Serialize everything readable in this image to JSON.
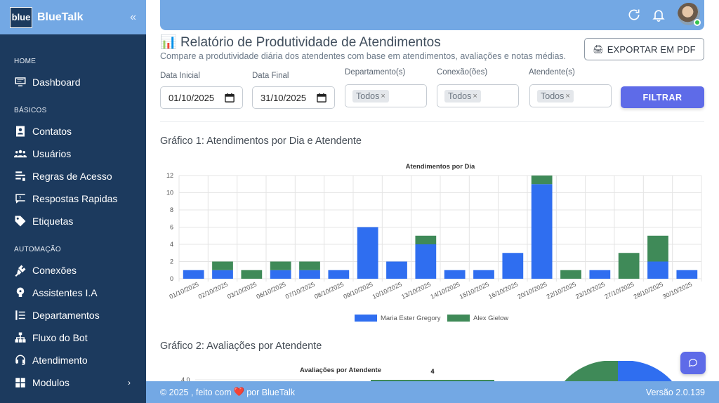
{
  "sidebar": {
    "logo_text": "blue",
    "brand": "BlueTalk",
    "collapse_icon": "double-chevron-left-icon",
    "sections": [
      {
        "label": "HOME",
        "items": [
          {
            "label": "Dashboard",
            "icon": "monitor-icon"
          }
        ]
      },
      {
        "label": "BÁSICOS",
        "items": [
          {
            "label": "Contatos",
            "icon": "contact-card-icon"
          },
          {
            "label": "Usuários",
            "icon": "users-icon"
          },
          {
            "label": "Regras de Acesso",
            "icon": "rules-icon"
          },
          {
            "label": "Respostas Rapidas",
            "icon": "question-icon"
          },
          {
            "label": "Etiquetas",
            "icon": "tag-icon"
          }
        ]
      },
      {
        "label": "AUTOMAÇÃO",
        "items": [
          {
            "label": "Conexões",
            "icon": "plug-icon"
          },
          {
            "label": "Assistentes I.A",
            "icon": "brain-icon"
          },
          {
            "label": "Departamentos",
            "icon": "list-icon"
          },
          {
            "label": "Fluxo do Bot",
            "icon": "flow-icon"
          },
          {
            "label": "Atendimento",
            "icon": "headset-icon"
          },
          {
            "label": "Modulos",
            "icon": "module-icon"
          }
        ]
      }
    ]
  },
  "header": {
    "refresh_icon": "refresh-icon",
    "bell_icon": "bell-icon"
  },
  "page": {
    "title": "Relatório de Produtividade de Atendimentos",
    "title_icon": "📊",
    "subtitle": "Compare a produtividade diária dos atendentes com base em atendimentos, avaliações e notas médias.",
    "export_label": "EXPORTAR EM PDF",
    "export_icon": "🖨"
  },
  "filters": {
    "date_start_label": "Data Inicial",
    "date_start_value": "01/10/2025",
    "date_end_label": "Data Final",
    "date_end_value": "31/10/2025",
    "department_label": "Departamento(s)",
    "department_chip": "Todos",
    "connection_label": "Conexão(ões)",
    "connection_chip": "Todos",
    "attendant_label": "Atendente(s)",
    "attendant_chip": "Todos",
    "filter_button": "FILTRAR"
  },
  "sections": {
    "chart1_heading": "Gráfico 1: Atendimentos por Dia e Atendente",
    "chart2_heading": "Gráfico 2: Avaliações por Atendente"
  },
  "chart_data": [
    {
      "type": "bar",
      "stacked": true,
      "title": "Atendimentos por Dia",
      "xlabel": "",
      "ylabel": "",
      "ylim": [
        0,
        12
      ],
      "yticks": [
        0,
        2,
        4,
        6,
        8,
        10,
        12
      ],
      "categories": [
        "01/10/2025",
        "02/10/2025",
        "03/10/2025",
        "06/10/2025",
        "07/10/2025",
        "08/10/2025",
        "09/10/2025",
        "10/10/2025",
        "13/10/2025",
        "14/10/2025",
        "15/10/2025",
        "16/10/2025",
        "20/10/2025",
        "22/10/2025",
        "23/10/2025",
        "27/10/2025",
        "28/10/2025",
        "30/10/2025"
      ],
      "series": [
        {
          "name": "Maria Ester Gregory",
          "color": "#2f6ef0",
          "values": [
            1,
            1,
            0,
            1,
            1,
            1,
            6,
            2,
            4,
            1,
            1,
            3,
            11,
            0,
            1,
            0,
            2,
            1
          ]
        },
        {
          "name": "Alex Gielow",
          "color": "#3f8a58",
          "values": [
            0,
            1,
            1,
            1,
            1,
            0,
            0,
            0,
            1,
            0,
            0,
            0,
            1,
            1,
            0,
            3,
            3,
            0
          ]
        }
      ],
      "grid": true,
      "legend": "bottom"
    },
    {
      "type": "bar",
      "title": "Avaliações por Atendente",
      "yticks_visible": [
        "4.0"
      ],
      "data_labels": [
        "4"
      ],
      "partially_visible": true
    }
  ],
  "footer": {
    "copyright": "© 2025 , feito com",
    "heart": "❤️",
    "by": "por BlueTalk",
    "version": "Versão 2.0.139"
  }
}
